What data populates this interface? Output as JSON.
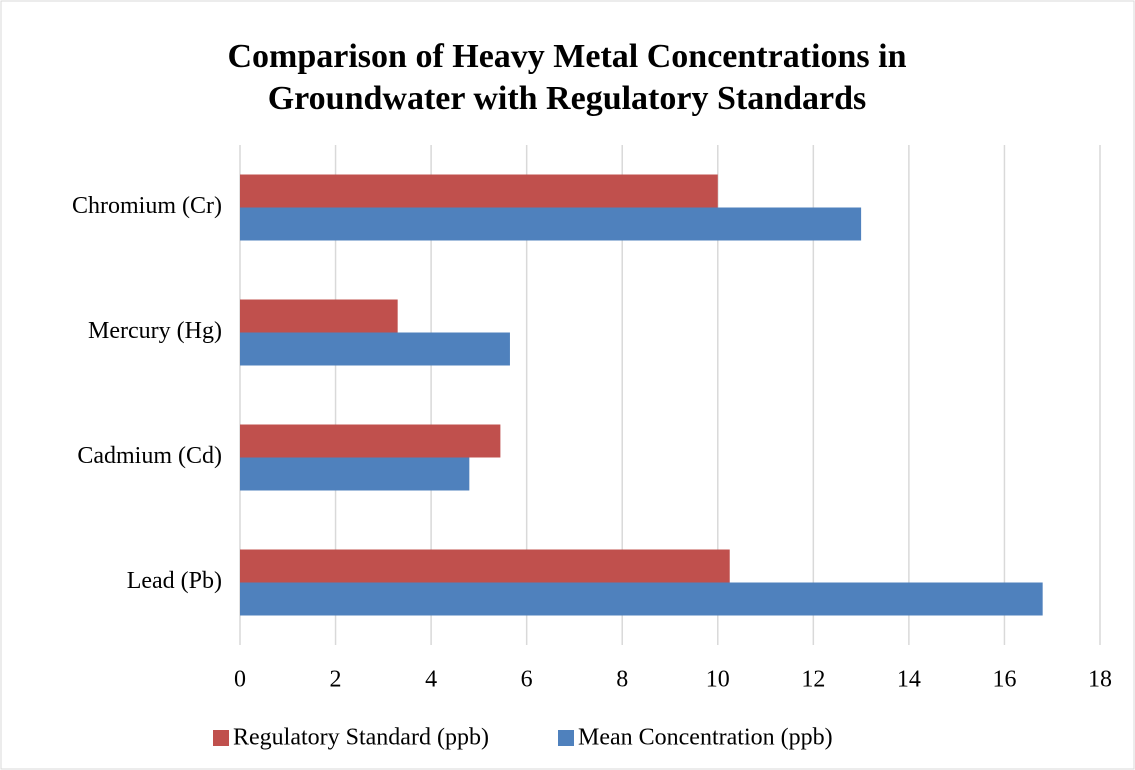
{
  "chart_data": {
    "type": "bar",
    "orientation": "horizontal",
    "title": "Comparison of Heavy Metal Concentrations in Groundwater with Regulatory Standards",
    "categories": [
      "Lead (Pb)",
      "Cadmium (Cd)",
      "Mercury (Hg)",
      "Chromium (Cr)"
    ],
    "series": [
      {
        "name": "Regulatory Standard (ppb)",
        "color": "#c0504d",
        "values": [
          10.25,
          5.45,
          3.3,
          10
        ]
      },
      {
        "name": "Mean Concentration (ppb)",
        "color": "#4f81bd",
        "values": [
          16.8,
          4.8,
          5.65,
          13
        ]
      }
    ],
    "xlim": [
      0,
      18
    ],
    "xticks": [
      0,
      2,
      4,
      6,
      8,
      10,
      12,
      14,
      16,
      18
    ],
    "grid": true,
    "legend": "bottom"
  }
}
